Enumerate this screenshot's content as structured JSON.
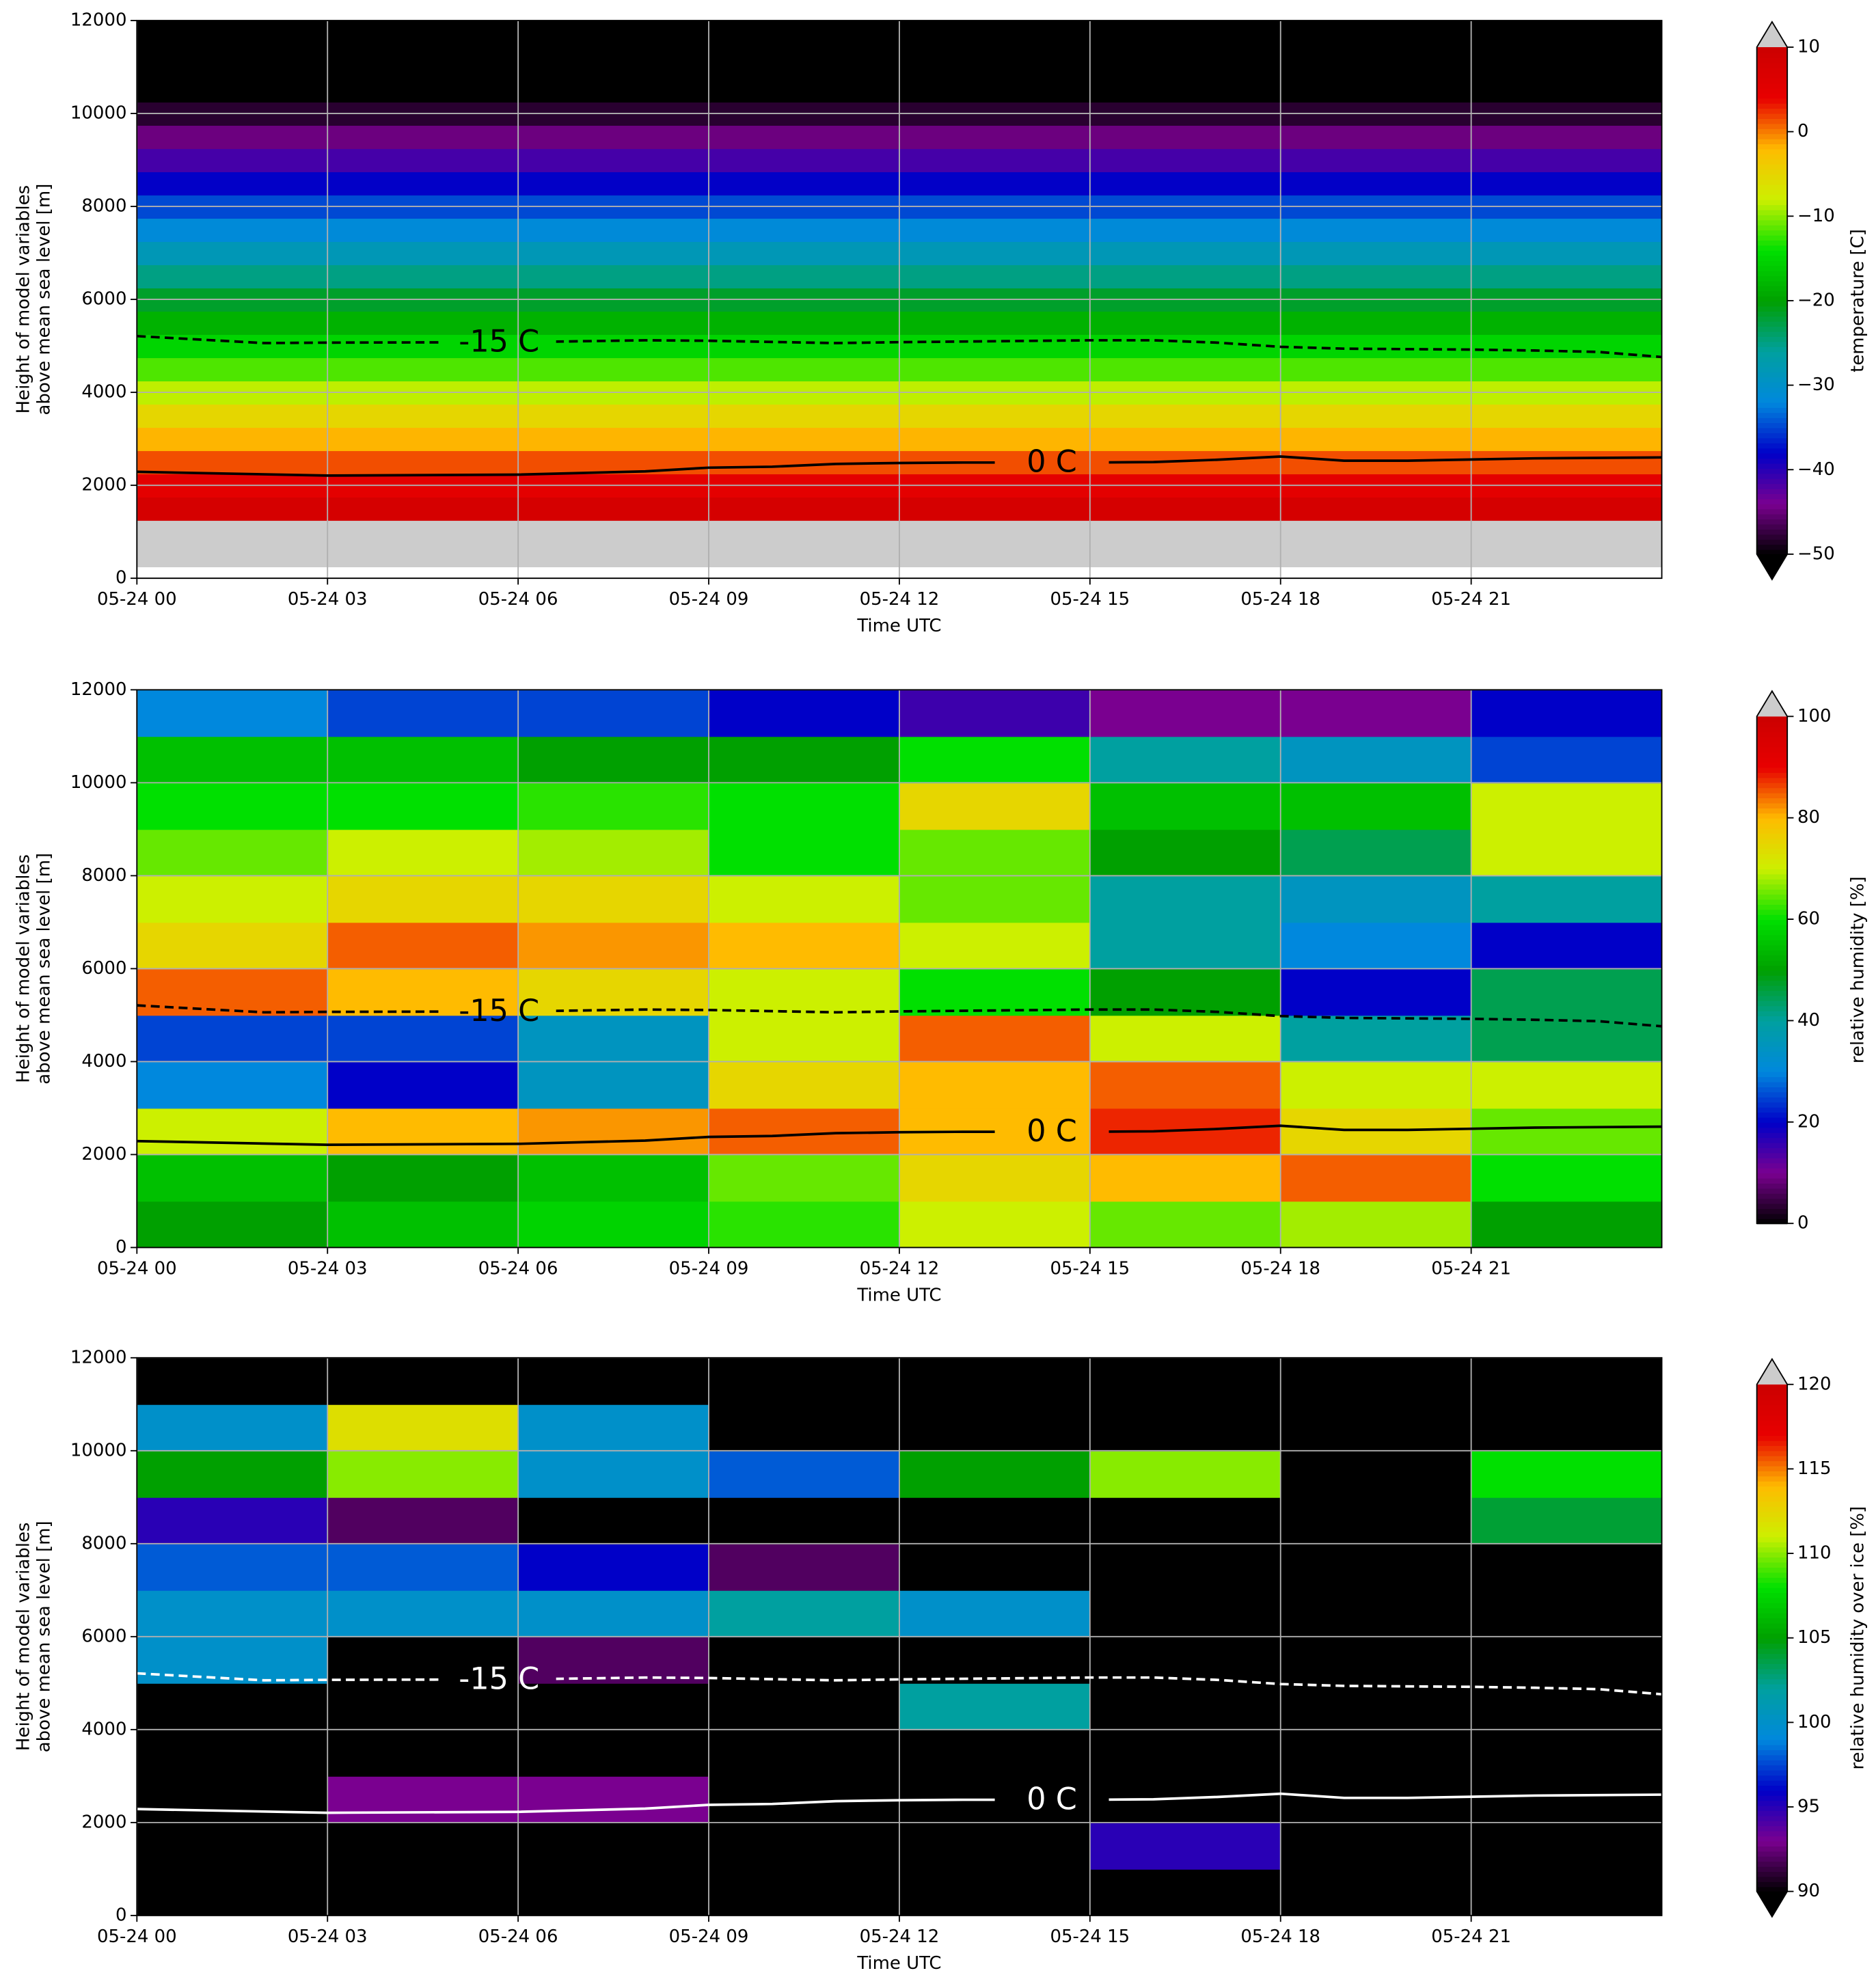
{
  "chart_data": [
    {
      "type": "heatmap",
      "ylabel": [
        "Height of model variables",
        "above mean sea level [m]"
      ],
      "xlabel": "Time UTC",
      "xlim": [
        0,
        24
      ],
      "xticks": [
        {
          "value": 0,
          "label": "05-24 00"
        },
        {
          "value": 3,
          "label": "05-24 03"
        },
        {
          "value": 6,
          "label": "05-24 06"
        },
        {
          "value": 9,
          "label": "05-24 09"
        },
        {
          "value": 12,
          "label": "05-24 12"
        },
        {
          "value": 15,
          "label": "05-24 15"
        },
        {
          "value": 18,
          "label": "05-24 18"
        },
        {
          "value": 21,
          "label": "05-24 21"
        }
      ],
      "ylim": [
        0,
        12000
      ],
      "yticks": [
        0,
        2000,
        4000,
        6000,
        8000,
        10000,
        12000
      ],
      "grid": true,
      "colorbar": {
        "label": "temperature [C]",
        "clim": [
          -50,
          10
        ],
        "extend": "both",
        "ticks": [
          10,
          0,
          {
            "value": -10,
            "label": "−10"
          },
          {
            "value": -20,
            "label": "−20"
          },
          {
            "value": -30,
            "label": "−30"
          },
          {
            "value": -40,
            "label": "−40"
          },
          {
            "value": -50,
            "label": "−50"
          }
        ]
      },
      "y": [
        500,
        1000,
        1500,
        2000,
        2500,
        3000,
        3500,
        4000,
        4500,
        5000,
        5500,
        6000,
        6500,
        7000,
        7500,
        8000,
        8500,
        9000,
        9500,
        10000,
        10500,
        11000,
        11500,
        12000
      ],
      "values": [
        14.7,
        11.4,
        8.1,
        4.8,
        1.5,
        -1.8,
        -5.1,
        -8.4,
        -11.7,
        -15,
        -18.3,
        -21.6,
        -24.9,
        -28.2,
        -31.5,
        -34.8,
        -38.1,
        -41.4,
        -44.7,
        -48,
        -51.3,
        -54.6,
        -57.9,
        -61.2
      ],
      "contours": [
        {
          "label": "0 C",
          "color": "#000000",
          "dashed": false,
          "x": [
            0,
            3,
            6,
            8,
            9,
            10,
            11,
            12,
            13,
            15,
            16,
            17,
            18,
            19,
            20,
            22,
            24
          ],
          "y": [
            2290,
            2210,
            2230,
            2300,
            2380,
            2400,
            2460,
            2480,
            2490,
            2490,
            2500,
            2550,
            2620,
            2530,
            2530,
            2580,
            2600
          ]
        },
        {
          "label": "-15 C",
          "color": "#000000",
          "dashed": true,
          "x": [
            0,
            2,
            3,
            6,
            8,
            9,
            11,
            12,
            15,
            16,
            17,
            18,
            19,
            21,
            22,
            23,
            24
          ],
          "y": [
            5210,
            5060,
            5070,
            5080,
            5120,
            5110,
            5060,
            5080,
            5120,
            5120,
            5070,
            4980,
            4940,
            4920,
            4900,
            4870,
            4760
          ]
        }
      ]
    },
    {
      "type": "heatmap",
      "ylabel": [
        "Height of model variables",
        "above mean sea level [m]"
      ],
      "xlabel": "Time UTC",
      "xlim": [
        0,
        24
      ],
      "xticks": [
        {
          "value": 0,
          "label": "05-24 00"
        },
        {
          "value": 3,
          "label": "05-24 03"
        },
        {
          "value": 6,
          "label": "05-24 06"
        },
        {
          "value": 9,
          "label": "05-24 09"
        },
        {
          "value": 12,
          "label": "05-24 12"
        },
        {
          "value": 15,
          "label": "05-24 15"
        },
        {
          "value": 18,
          "label": "05-24 18"
        },
        {
          "value": 21,
          "label": "05-24 21"
        }
      ],
      "ylim": [
        0,
        12000
      ],
      "yticks": [
        0,
        2000,
        4000,
        6000,
        8000,
        10000,
        12000
      ],
      "grid": true,
      "colorbar": {
        "label": "relative humidity [%]",
        "clim": [
          0,
          100
        ],
        "extend": "max",
        "ticks": [
          100,
          80,
          60,
          40,
          20,
          0
        ]
      },
      "x": [
        1.5,
        4.5,
        7.5,
        10.5,
        13.5,
        16.5,
        19.5,
        22.5
      ],
      "y": [
        500,
        1500,
        2500,
        3500,
        4500,
        5500,
        6500,
        7500,
        8500,
        9500,
        10500,
        11500
      ],
      "z": [
        [
          50,
          55,
          58,
          62,
          70,
          65,
          68,
          50
        ],
        [
          55,
          50,
          55,
          65,
          75,
          80,
          85,
          60
        ],
        [
          70,
          80,
          82,
          85,
          80,
          88,
          75,
          65
        ],
        [
          30,
          20,
          35,
          75,
          80,
          85,
          70,
          70
        ],
        [
          25,
          25,
          35,
          70,
          85,
          70,
          40,
          45
        ],
        [
          85,
          80,
          75,
          70,
          60,
          50,
          20,
          45
        ],
        [
          75,
          85,
          82,
          80,
          70,
          40,
          30,
          20
        ],
        [
          70,
          75,
          75,
          70,
          65,
          40,
          35,
          40
        ],
        [
          65,
          70,
          68,
          60,
          65,
          50,
          45,
          70
        ],
        [
          60,
          60,
          62,
          60,
          75,
          55,
          55,
          70
        ],
        [
          55,
          55,
          50,
          50,
          60,
          40,
          35,
          25
        ],
        [
          30,
          25,
          25,
          20,
          15,
          10,
          10,
          20
        ]
      ],
      "contours": [
        {
          "label": "0 C",
          "color": "#000000",
          "dashed": false,
          "x": [
            0,
            3,
            6,
            8,
            9,
            10,
            11,
            12,
            13,
            15,
            16,
            17,
            18,
            19,
            20,
            22,
            24
          ],
          "y": [
            2290,
            2210,
            2230,
            2300,
            2380,
            2400,
            2460,
            2480,
            2490,
            2490,
            2500,
            2550,
            2620,
            2530,
            2530,
            2580,
            2600
          ]
        },
        {
          "label": "-15 C",
          "color": "#000000",
          "dashed": true,
          "x": [
            0,
            2,
            3,
            6,
            8,
            9,
            11,
            12,
            15,
            16,
            17,
            18,
            19,
            21,
            22,
            23,
            24
          ],
          "y": [
            5210,
            5060,
            5070,
            5080,
            5120,
            5110,
            5060,
            5080,
            5120,
            5120,
            5070,
            4980,
            4940,
            4920,
            4900,
            4870,
            4760
          ]
        }
      ]
    },
    {
      "type": "heatmap",
      "ylabel": [
        "Height of model variables",
        "above mean sea level [m]"
      ],
      "xlabel": "Time UTC",
      "xlim": [
        0,
        24
      ],
      "xticks": [
        {
          "value": 0,
          "label": "05-24 00"
        },
        {
          "value": 3,
          "label": "05-24 03"
        },
        {
          "value": 6,
          "label": "05-24 06"
        },
        {
          "value": 9,
          "label": "05-24 09"
        },
        {
          "value": 12,
          "label": "05-24 12"
        },
        {
          "value": 15,
          "label": "05-24 15"
        },
        {
          "value": 18,
          "label": "05-24 18"
        },
        {
          "value": 21,
          "label": "05-24 21"
        }
      ],
      "ylim": [
        0,
        12000
      ],
      "yticks": [
        0,
        2000,
        4000,
        6000,
        8000,
        10000,
        12000
      ],
      "grid": true,
      "colorbar": {
        "label": "relative humidity over ice [%]",
        "clim": [
          90,
          120
        ],
        "extend": "both",
        "ticks": [
          120,
          115,
          110,
          105,
          100,
          95,
          90
        ]
      },
      "x": [
        1.5,
        4.5,
        7.5,
        10.5,
        13.5,
        16.5,
        19.5,
        22.5
      ],
      "y": [
        500,
        1500,
        2500,
        3500,
        4500,
        5500,
        6500,
        7500,
        8500,
        9500,
        10500,
        11500
      ],
      "z": [
        [
          80,
          80,
          80,
          80,
          80,
          80,
          80,
          80
        ],
        [
          80,
          80,
          80,
          80,
          80,
          95,
          80,
          80
        ],
        [
          80,
          93,
          93,
          80,
          80,
          80,
          80,
          80
        ],
        [
          80,
          80,
          80,
          80,
          80,
          80,
          80,
          80
        ],
        [
          80,
          80,
          80,
          80,
          102,
          80,
          80,
          80
        ],
        [
          100,
          80,
          92,
          80,
          80,
          80,
          80,
          80
        ],
        [
          100,
          100,
          100,
          102,
          100,
          80,
          80,
          80
        ],
        [
          98,
          98,
          96,
          92,
          80,
          80,
          80,
          80
        ],
        [
          95,
          92,
          80,
          80,
          80,
          80,
          80,
          104
        ],
        [
          105,
          110,
          100,
          98,
          105,
          110,
          80,
          108
        ],
        [
          100,
          112,
          100,
          80,
          80,
          80,
          80,
          80
        ],
        [
          80,
          80,
          80,
          80,
          80,
          80,
          80,
          80
        ]
      ],
      "contours": [
        {
          "label": "0 C",
          "color": "#ffffff",
          "dashed": false,
          "x": [
            0,
            3,
            6,
            8,
            9,
            10,
            11,
            12,
            13,
            15,
            16,
            17,
            18,
            19,
            20,
            22,
            24
          ],
          "y": [
            2290,
            2210,
            2230,
            2300,
            2380,
            2400,
            2460,
            2480,
            2490,
            2490,
            2500,
            2550,
            2620,
            2530,
            2530,
            2580,
            2600
          ]
        },
        {
          "label": "-15 C",
          "color": "#ffffff",
          "dashed": true,
          "x": [
            0,
            2,
            3,
            6,
            8,
            9,
            11,
            12,
            15,
            16,
            17,
            18,
            19,
            21,
            22,
            23,
            24
          ],
          "y": [
            5210,
            5060,
            5070,
            5080,
            5120,
            5110,
            5060,
            5080,
            5120,
            5120,
            5070,
            4980,
            4940,
            4920,
            4900,
            4870,
            4760
          ]
        }
      ]
    }
  ]
}
